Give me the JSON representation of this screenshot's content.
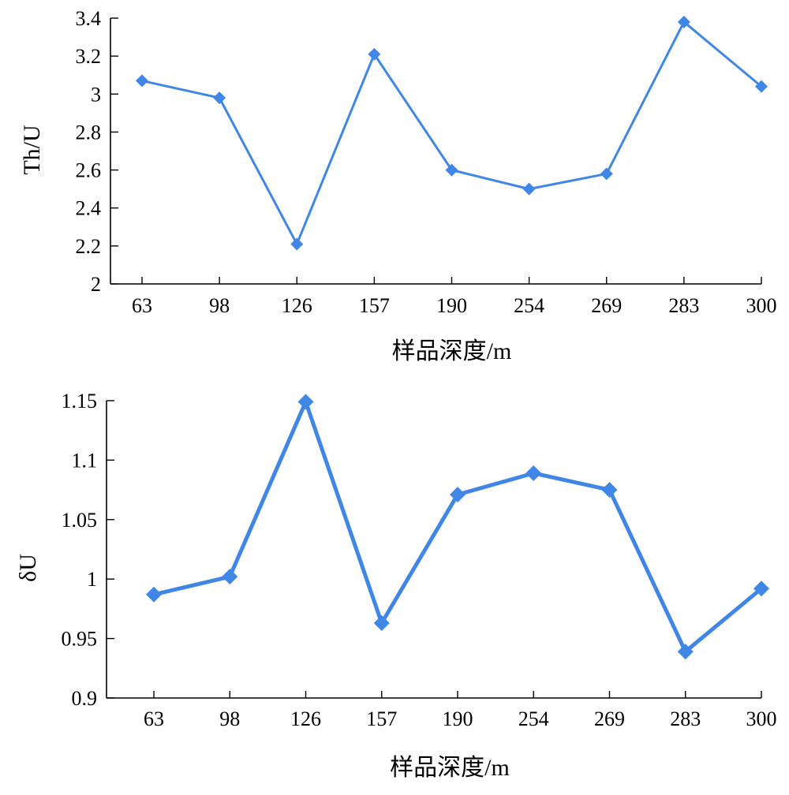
{
  "chart_data": [
    {
      "type": "line",
      "categories": [
        "63",
        "98",
        "126",
        "157",
        "190",
        "254",
        "269",
        "283",
        "300"
      ],
      "series": [
        {
          "values": [
            3.07,
            2.98,
            2.21,
            3.21,
            2.6,
            2.5,
            2.58,
            3.38,
            3.04
          ]
        }
      ],
      "xlabel": "样品深度/m",
      "ylabel": "Th/U",
      "ylim": [
        2,
        3.4
      ],
      "yticks": [
        "2",
        "2.2",
        "2.4",
        "2.6",
        "2.8",
        "3",
        "3.2",
        "3.4"
      ],
      "grid": false,
      "color": "#3f86e6",
      "marker": "diamond"
    },
    {
      "type": "line",
      "categories": [
        "63",
        "98",
        "126",
        "157",
        "190",
        "254",
        "269",
        "283",
        "300"
      ],
      "series": [
        {
          "values": [
            0.987,
            1.002,
            1.149,
            0.963,
            1.071,
            1.089,
            1.075,
            0.939,
            0.992
          ]
        }
      ],
      "xlabel": "样品深度/m",
      "ylabel": "δU",
      "ylim": [
        0.9,
        1.15
      ],
      "yticks": [
        "0.9",
        "0.95",
        "1",
        "1.05",
        "1.1",
        "1.15"
      ],
      "grid": false,
      "color": "#3f86e6",
      "marker": "diamond"
    }
  ]
}
